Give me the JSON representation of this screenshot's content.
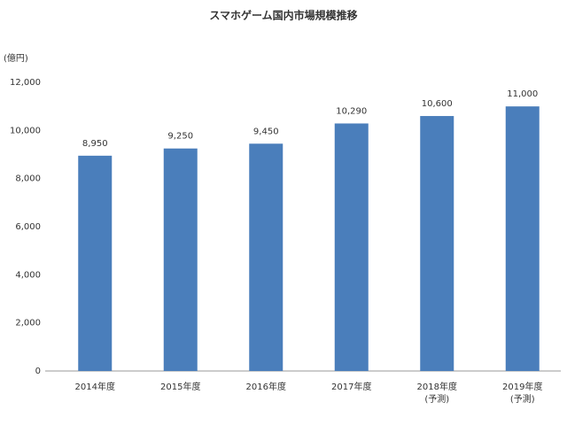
{
  "chart_data": {
    "type": "bar",
    "title": "スマホゲーム国内市場規模推移",
    "y_label": "(億円)",
    "categories": [
      "2014年度",
      "2015年度",
      "2016年度",
      "2017年度",
      "2018年度\n(予測)",
      "2019年度\n(予測)"
    ],
    "values": [
      8950,
      9250,
      9450,
      10290,
      10600,
      11000
    ],
    "value_labels": [
      "8,950",
      "9,250",
      "9,450",
      "10,290",
      "10,600",
      "11,000"
    ],
    "color": "#4a7ebb",
    "ylim": [
      0,
      12000
    ],
    "yticks": [
      0,
      {
        "value": 2000,
        "label": "2,000"
      },
      {
        "value": 4000,
        "label": "4,000"
      },
      {
        "value": 6000,
        "label": "6,000"
      },
      {
        "value": 8000,
        "label": "8,000"
      },
      {
        "value": 10000,
        "label": "10,000"
      },
      {
        "value": 12000,
        "label": "12,000"
      }
    ],
    "grid": false
  }
}
